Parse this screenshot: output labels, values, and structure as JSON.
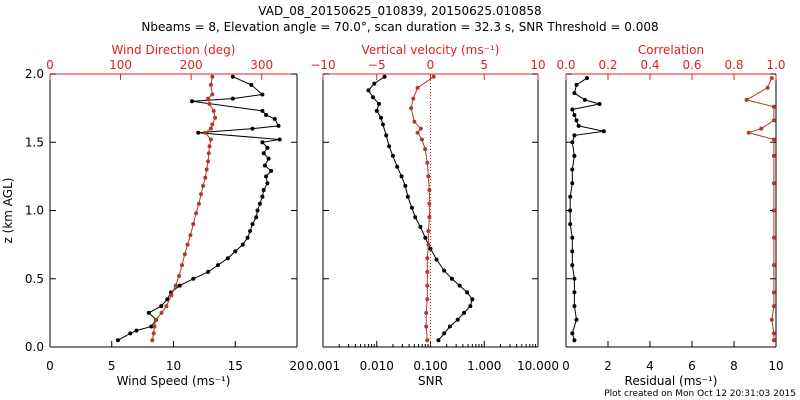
{
  "title_line1": "VAD_08_20150625_010839, 20150625.010858",
  "title_line2": "Nbeams = 8, Elevation angle = 70.0°, scan duration = 32.3 s, SNR Threshold = 0.008",
  "footer": "Plot created on Mon Oct 12 20:31:03 2015",
  "colors": {
    "black_series": "#000000",
    "red_series": "#b03a2e",
    "axis": "#000000",
    "red_axis": "#e02020",
    "zero_line": "#e02020"
  },
  "chart_data": [
    {
      "type": "line",
      "panel": "wind",
      "ylabel": "z (km AGL)",
      "ylim": [
        0.0,
        2.0
      ],
      "yticks": [
        "0.0",
        "0.5",
        "1.0",
        "1.5",
        "2.0"
      ],
      "bottom_axis": {
        "label": "Wind Speed (ms⁻¹)",
        "range": [
          0,
          20
        ],
        "ticks": [
          "0",
          "5",
          "10",
          "15",
          "20"
        ]
      },
      "top_axis": {
        "label": "Wind Direction (deg)",
        "range": [
          0,
          350
        ],
        "ticks": [
          "0",
          "100",
          "200",
          "300"
        ]
      },
      "series": [
        {
          "name": "Wind Speed (ms⁻¹)",
          "axis": "bottom",
          "color": "black",
          "points": [
            [
              14.8,
              1.98
            ],
            [
              16.3,
              1.92
            ],
            [
              17.2,
              1.85
            ],
            [
              14.8,
              1.82
            ],
            [
              11.5,
              1.8
            ],
            [
              17.2,
              1.73
            ],
            [
              17.5,
              1.7
            ],
            [
              18.2,
              1.67
            ],
            [
              18.5,
              1.62
            ],
            [
              16.4,
              1.6
            ],
            [
              12.0,
              1.57
            ],
            [
              18.6,
              1.52
            ],
            [
              17.2,
              1.5
            ],
            [
              17.6,
              1.46
            ],
            [
              17.3,
              1.42
            ],
            [
              17.7,
              1.38
            ],
            [
              17.4,
              1.33
            ],
            [
              17.9,
              1.29
            ],
            [
              17.5,
              1.25
            ],
            [
              17.6,
              1.2
            ],
            [
              17.3,
              1.15
            ],
            [
              17.2,
              1.1
            ],
            [
              17.0,
              1.05
            ],
            [
              16.8,
              1.0
            ],
            [
              16.7,
              0.95
            ],
            [
              16.4,
              0.9
            ],
            [
              16.2,
              0.85
            ],
            [
              16.0,
              0.8
            ],
            [
              15.6,
              0.75
            ],
            [
              15.0,
              0.7
            ],
            [
              14.4,
              0.65
            ],
            [
              13.6,
              0.6
            ],
            [
              12.8,
              0.55
            ],
            [
              11.6,
              0.5
            ],
            [
              10.5,
              0.45
            ],
            [
              9.8,
              0.4
            ],
            [
              9.5,
              0.35
            ],
            [
              9.0,
              0.3
            ],
            [
              8.0,
              0.25
            ],
            [
              8.6,
              0.2
            ],
            [
              8.2,
              0.15
            ],
            [
              7.0,
              0.12
            ],
            [
              6.5,
              0.1
            ],
            [
              5.5,
              0.05
            ]
          ]
        },
        {
          "name": "Wind Direction (deg)",
          "axis": "top",
          "color": "red",
          "points": [
            [
              230,
              1.98
            ],
            [
              228,
              1.92
            ],
            [
              230,
              1.85
            ],
            [
              224,
              1.82
            ],
            [
              226,
              1.78
            ],
            [
              232,
              1.73
            ],
            [
              234,
              1.68
            ],
            [
              230,
              1.63
            ],
            [
              228,
              1.6
            ],
            [
              220,
              1.57
            ],
            [
              228,
              1.52
            ],
            [
              226,
              1.47
            ],
            [
              225,
              1.42
            ],
            [
              224,
              1.36
            ],
            [
              222,
              1.3
            ],
            [
              220,
              1.24
            ],
            [
              217,
              1.18
            ],
            [
              214,
              1.12
            ],
            [
              211,
              1.05
            ],
            [
              207,
              0.98
            ],
            [
              203,
              0.9
            ],
            [
              199,
              0.82
            ],
            [
              195,
              0.75
            ],
            [
              191,
              0.68
            ],
            [
              187,
              0.6
            ],
            [
              183,
              0.52
            ],
            [
              178,
              0.45
            ],
            [
              172,
              0.38
            ],
            [
              165,
              0.3
            ],
            [
              158,
              0.25
            ],
            [
              150,
              0.2
            ],
            [
              148,
              0.15
            ],
            [
              147,
              0.1
            ],
            [
              145,
              0.05
            ]
          ]
        }
      ]
    },
    {
      "type": "line",
      "panel": "vertical",
      "ylim": [
        0.0,
        2.0
      ],
      "bottom_axis": {
        "label": "SNR",
        "scale": "log",
        "range": [
          0.001,
          10.0
        ],
        "ticks": [
          "0.001",
          "0.010",
          "0.100",
          "1.000",
          "10.000"
        ]
      },
      "top_axis": {
        "label": "Vertical velocity (ms⁻¹)",
        "range": [
          -10,
          10
        ],
        "ticks": [
          "−10",
          "−5",
          "0",
          "5",
          "10"
        ]
      },
      "reference_line": {
        "axis": "top",
        "value": 0
      },
      "series": [
        {
          "name": "SNR",
          "axis": "bottom",
          "color": "black",
          "points": [
            [
              0.014,
              1.98
            ],
            [
              0.009,
              1.93
            ],
            [
              0.007,
              1.88
            ],
            [
              0.0085,
              1.83
            ],
            [
              0.011,
              1.78
            ],
            [
              0.01,
              1.73
            ],
            [
              0.012,
              1.68
            ],
            [
              0.013,
              1.63
            ],
            [
              0.015,
              1.55
            ],
            [
              0.017,
              1.47
            ],
            [
              0.02,
              1.4
            ],
            [
              0.024,
              1.32
            ],
            [
              0.029,
              1.25
            ],
            [
              0.034,
              1.18
            ],
            [
              0.038,
              1.1
            ],
            [
              0.045,
              1.02
            ],
            [
              0.052,
              0.95
            ],
            [
              0.065,
              0.88
            ],
            [
              0.08,
              0.8
            ],
            [
              0.1,
              0.72
            ],
            [
              0.13,
              0.64
            ],
            [
              0.18,
              0.56
            ],
            [
              0.25,
              0.5
            ],
            [
              0.35,
              0.45
            ],
            [
              0.48,
              0.4
            ],
            [
              0.6,
              0.35
            ],
            [
              0.55,
              0.3
            ],
            [
              0.42,
              0.25
            ],
            [
              0.32,
              0.2
            ],
            [
              0.23,
              0.15
            ],
            [
              0.18,
              0.1
            ],
            [
              0.14,
              0.05
            ]
          ]
        },
        {
          "name": "Vertical velocity (ms⁻¹)",
          "axis": "top",
          "color": "red",
          "points": [
            [
              0.3,
              1.98
            ],
            [
              -1.2,
              1.9
            ],
            [
              -1.6,
              1.82
            ],
            [
              -1.8,
              1.75
            ],
            [
              -1.5,
              1.65
            ],
            [
              -0.9,
              1.6
            ],
            [
              -1.2,
              1.57
            ],
            [
              -0.8,
              1.52
            ],
            [
              -0.5,
              1.45
            ],
            [
              -0.3,
              1.35
            ],
            [
              -0.2,
              1.25
            ],
            [
              -0.1,
              1.15
            ],
            [
              -0.1,
              1.05
            ],
            [
              -0.1,
              0.95
            ],
            [
              -0.2,
              0.85
            ],
            [
              -0.2,
              0.75
            ],
            [
              -0.3,
              0.65
            ],
            [
              -0.3,
              0.55
            ],
            [
              -0.3,
              0.45
            ],
            [
              -0.3,
              0.35
            ],
            [
              -0.4,
              0.25
            ],
            [
              -0.4,
              0.15
            ],
            [
              -0.3,
              0.05
            ]
          ]
        }
      ]
    },
    {
      "type": "line",
      "panel": "residual",
      "ylim": [
        0.0,
        2.0
      ],
      "bottom_axis": {
        "label": "Residual (ms⁻¹)",
        "range": [
          0,
          10
        ],
        "ticks": [
          "0",
          "2",
          "4",
          "6",
          "8",
          "10"
        ]
      },
      "top_axis": {
        "label": "Correlation",
        "range": [
          0.0,
          1.0
        ],
        "ticks": [
          "0.0",
          "0.2",
          "0.4",
          "0.6",
          "0.8",
          "1.0"
        ]
      },
      "series": [
        {
          "name": "Residual (ms⁻¹)",
          "axis": "bottom",
          "color": "black",
          "points": [
            [
              1.0,
              1.97
            ],
            [
              0.5,
              1.92
            ],
            [
              0.4,
              1.86
            ],
            [
              0.9,
              1.81
            ],
            [
              1.6,
              1.78
            ],
            [
              0.3,
              1.74
            ],
            [
              0.4,
              1.7
            ],
            [
              0.5,
              1.66
            ],
            [
              0.6,
              1.62
            ],
            [
              1.8,
              1.58
            ],
            [
              0.4,
              1.55
            ],
            [
              0.3,
              1.5
            ],
            [
              0.4,
              1.4
            ],
            [
              0.3,
              1.3
            ],
            [
              0.3,
              1.2
            ],
            [
              0.2,
              1.1
            ],
            [
              0.2,
              1.0
            ],
            [
              0.2,
              0.9
            ],
            [
              0.3,
              0.8
            ],
            [
              0.3,
              0.7
            ],
            [
              0.3,
              0.6
            ],
            [
              0.4,
              0.5
            ],
            [
              0.4,
              0.4
            ],
            [
              0.4,
              0.3
            ],
            [
              0.5,
              0.2
            ],
            [
              0.3,
              0.1
            ],
            [
              0.4,
              0.05
            ]
          ]
        },
        {
          "name": "Correlation",
          "axis": "top",
          "color": "red",
          "points": [
            [
              0.98,
              1.97
            ],
            [
              0.96,
              1.9
            ],
            [
              0.86,
              1.81
            ],
            [
              0.99,
              1.76
            ],
            [
              0.99,
              1.66
            ],
            [
              0.93,
              1.6
            ],
            [
              0.87,
              1.57
            ],
            [
              0.99,
              1.52
            ],
            [
              0.99,
              1.4
            ],
            [
              0.99,
              1.2
            ],
            [
              0.99,
              1.0
            ],
            [
              0.99,
              0.8
            ],
            [
              0.99,
              0.6
            ],
            [
              0.99,
              0.4
            ],
            [
              0.99,
              0.3
            ],
            [
              0.98,
              0.2
            ],
            [
              0.99,
              0.1
            ],
            [
              0.99,
              0.05
            ]
          ]
        }
      ]
    }
  ]
}
